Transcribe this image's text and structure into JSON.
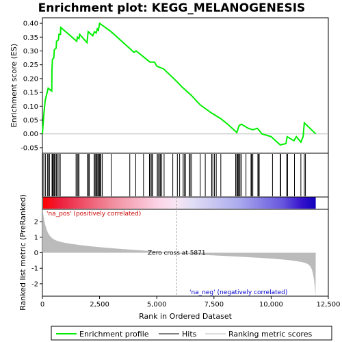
{
  "chart_data": {
    "type": "line",
    "title": "Enrichment plot: KEGG_MELANOGENESIS",
    "xlabel": "Rank in Ordered Dataset",
    "ylabel_top": "Enrichment score (ES)",
    "ylabel_bottom": "Ranked list metric (PreRanked)",
    "x_range": [
      0,
      12500
    ],
    "x_ticks": [
      0,
      2500,
      5000,
      7500,
      10000,
      12500
    ],
    "x_tick_labels": [
      "0",
      "2,500",
      "5,000",
      "7,500",
      "10,000",
      "12,500"
    ],
    "n_genes": 11950,
    "es_ylim": [
      -0.07,
      0.42
    ],
    "es_ticks": [
      -0.05,
      0.0,
      0.05,
      0.1,
      0.15,
      0.2,
      0.25,
      0.3,
      0.35,
      0.4
    ],
    "es_tick_labels": [
      "-0.05",
      "0.00",
      "0.05",
      "0.10",
      "0.15",
      "0.20",
      "0.25",
      "0.30",
      "0.35",
      "0.40"
    ],
    "metric_ylim": [
      -2.8,
      2.8
    ],
    "metric_ticks": [
      -2,
      -1,
      0,
      1,
      2
    ],
    "metric_tick_labels": [
      "-2",
      "-1",
      "0",
      "1",
      "2"
    ],
    "zero_cross_rank": 5871,
    "zero_cross_label": "Zero cross at 5871",
    "pos_label": "'na_pos' (positively correlated)",
    "neg_label": "'na_neg' (negatively correlated)",
    "enrichment_profile": [
      [
        0,
        0.0
      ],
      [
        50,
        0.06
      ],
      [
        120,
        0.12
      ],
      [
        250,
        0.165
      ],
      [
        410,
        0.155
      ],
      [
        420,
        0.235
      ],
      [
        440,
        0.27
      ],
      [
        500,
        0.275
      ],
      [
        520,
        0.305
      ],
      [
        600,
        0.31
      ],
      [
        620,
        0.335
      ],
      [
        700,
        0.34
      ],
      [
        720,
        0.36
      ],
      [
        790,
        0.36
      ],
      [
        800,
        0.385
      ],
      [
        1500,
        0.335
      ],
      [
        1530,
        0.35
      ],
      [
        1600,
        0.345
      ],
      [
        1630,
        0.36
      ],
      [
        1950,
        0.33
      ],
      [
        2000,
        0.37
      ],
      [
        2200,
        0.355
      ],
      [
        2280,
        0.37
      ],
      [
        2350,
        0.365
      ],
      [
        2400,
        0.38
      ],
      [
        2450,
        0.375
      ],
      [
        2500,
        0.4
      ],
      [
        3000,
        0.37
      ],
      [
        3800,
        0.31
      ],
      [
        4000,
        0.295
      ],
      [
        4100,
        0.3
      ],
      [
        4700,
        0.26
      ],
      [
        4900,
        0.26
      ],
      [
        5000,
        0.245
      ],
      [
        5300,
        0.235
      ],
      [
        5871,
        0.19
      ],
      [
        6100,
        0.17
      ],
      [
        6500,
        0.14
      ],
      [
        6900,
        0.105
      ],
      [
        7400,
        0.075
      ],
      [
        7800,
        0.055
      ],
      [
        8100,
        0.035
      ],
      [
        8500,
        0.005
      ],
      [
        8600,
        0.03
      ],
      [
        8700,
        0.035
      ],
      [
        9000,
        0.02
      ],
      [
        9200,
        0.015
      ],
      [
        9400,
        0.02
      ],
      [
        9600,
        0.0
      ],
      [
        10000,
        -0.01
      ],
      [
        10400,
        -0.04
      ],
      [
        10650,
        -0.035
      ],
      [
        10700,
        -0.01
      ],
      [
        11000,
        -0.025
      ],
      [
        11100,
        -0.01
      ],
      [
        11300,
        -0.03
      ],
      [
        11400,
        -0.01
      ],
      [
        11450,
        0.04
      ],
      [
        11950,
        0.0
      ]
    ],
    "hits": [
      10,
      60,
      130,
      220,
      260,
      310,
      420,
      450,
      480,
      520,
      560,
      610,
      660,
      720,
      780,
      1470,
      1520,
      1560,
      1600,
      1970,
      2010,
      2050,
      2260,
      2300,
      2340,
      2380,
      2420,
      2460,
      2490,
      2520,
      2560,
      2620,
      3010,
      3820,
      4080,
      4420,
      4680,
      4720,
      4780,
      4820,
      5020,
      5060,
      5120,
      5160,
      5220,
      5320,
      5700,
      5900,
      6000,
      6150,
      6200,
      6260,
      6420,
      6460,
      6520,
      6900,
      7120,
      7400,
      7450,
      7520,
      7600,
      7800,
      8450,
      8500,
      8530,
      8560,
      8600,
      8640,
      8700,
      8900,
      9120,
      9150,
      9200,
      9420,
      9440,
      9480,
      10060,
      10400,
      10420,
      10680,
      10720,
      11020,
      11300,
      11450,
      11500
    ]
  },
  "legend": {
    "items": [
      {
        "label": "Enrichment profile",
        "color": "#00ee00"
      },
      {
        "label": "Hits",
        "color": "#000000"
      },
      {
        "label": "Ranking metric scores",
        "color": "#bbbbbb"
      }
    ]
  },
  "colors": {
    "profile": "#00ee00",
    "metric_fill": "#bbbbbb",
    "pos_text": "#cc0000",
    "neg_text": "#0000cc",
    "zero_line": "#aaaaaa"
  }
}
